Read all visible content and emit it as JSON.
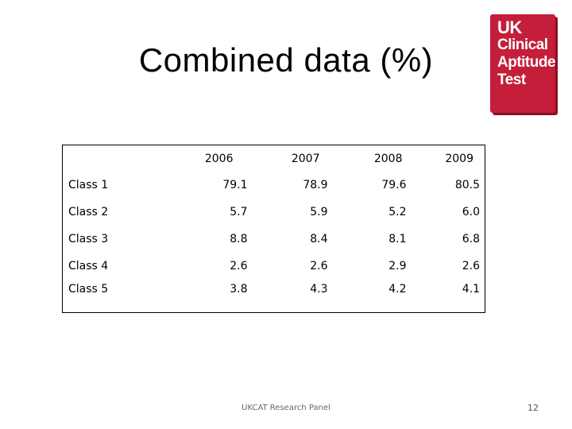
{
  "title": "Combined data (%)",
  "logo": {
    "lines": [
      "UK",
      "Clinical",
      "Aptitude",
      "Test"
    ],
    "color": "#c41e3a"
  },
  "table": {
    "columns": [
      "",
      "2006",
      "2007",
      "2008",
      "2009"
    ],
    "rows": [
      {
        "label": "Class 1",
        "values": [
          "79.1",
          "78.9",
          "79.6",
          "80.5"
        ]
      },
      {
        "label": "Class 2",
        "values": [
          "5.7",
          "5.9",
          "5.2",
          "6.0"
        ]
      },
      {
        "label": "Class 3",
        "values": [
          "8.8",
          "8.4",
          "8.1",
          "6.8"
        ]
      },
      {
        "label": "Class 4",
        "values": [
          "2.6",
          "2.6",
          "2.9",
          "2.6"
        ]
      },
      {
        "label": "Class 5",
        "values": [
          "3.8",
          "4.3",
          "4.2",
          "4.1"
        ]
      }
    ]
  },
  "footer": "UKCAT Research Panel",
  "page_number": "12"
}
